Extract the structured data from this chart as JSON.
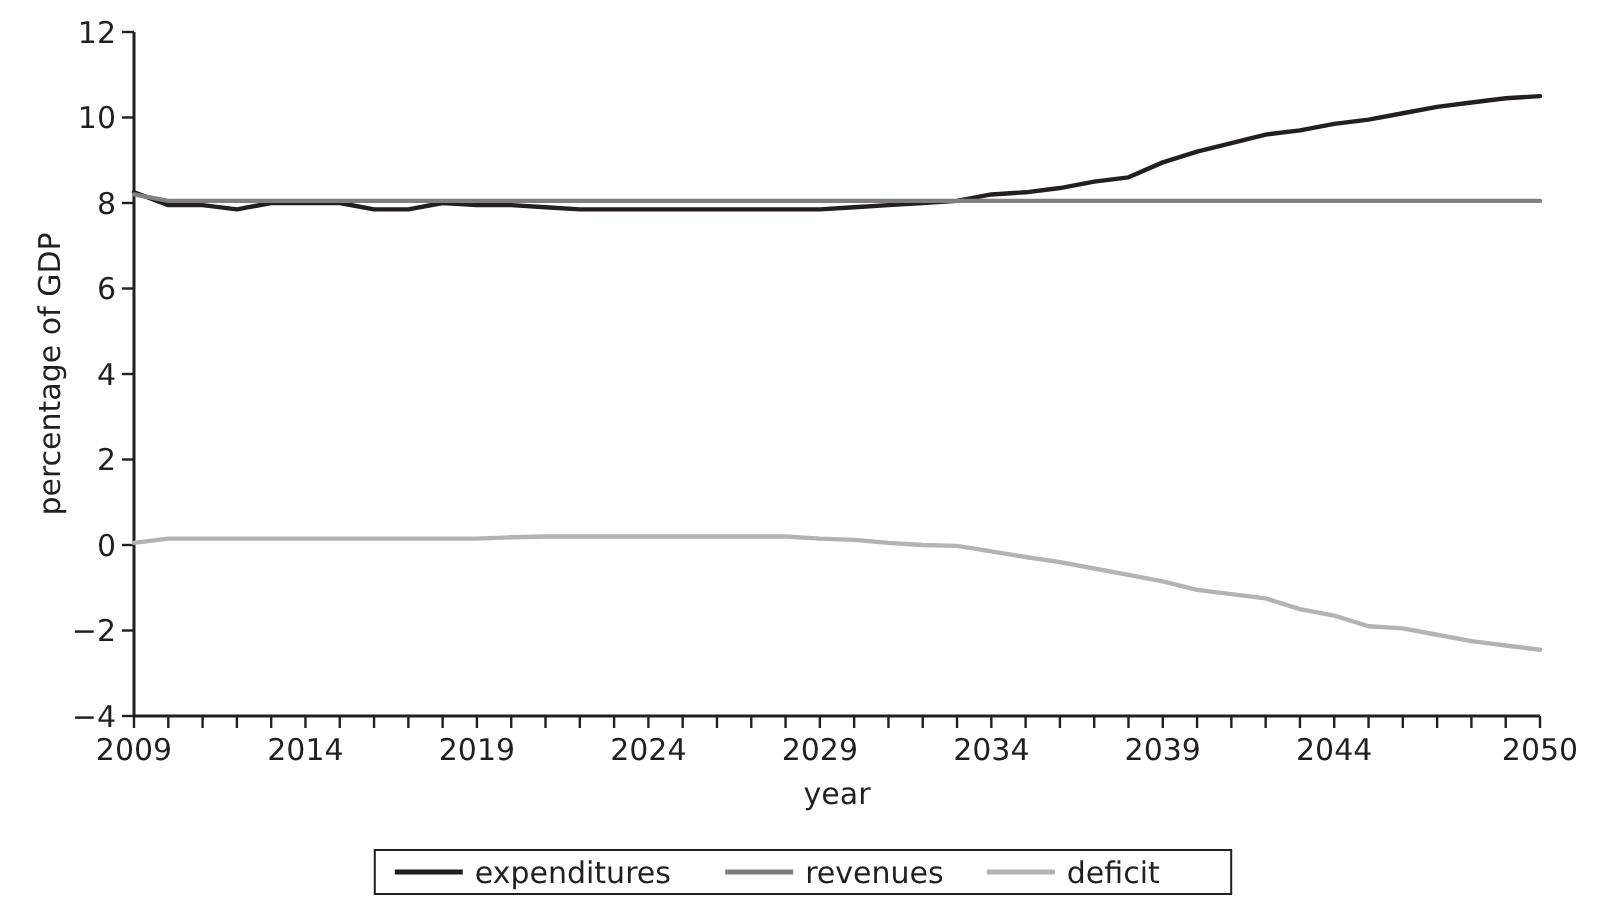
{
  "chart_data": {
    "type": "line",
    "xlabel": "year",
    "ylabel": "percentage of GDP",
    "x": [
      2009,
      2010,
      2011,
      2012,
      2013,
      2014,
      2015,
      2016,
      2017,
      2018,
      2019,
      2020,
      2021,
      2022,
      2023,
      2024,
      2025,
      2026,
      2027,
      2028,
      2029,
      2030,
      2031,
      2032,
      2033,
      2034,
      2035,
      2036,
      2037,
      2038,
      2039,
      2040,
      2041,
      2042,
      2043,
      2044,
      2045,
      2046,
      2047,
      2048,
      2049,
      2050
    ],
    "series": [
      {
        "name": "expenditures",
        "color": "#231f20",
        "values": [
          8.25,
          7.95,
          7.95,
          7.85,
          8.0,
          8.0,
          8.0,
          7.85,
          7.85,
          8.0,
          7.95,
          7.95,
          7.9,
          7.85,
          7.85,
          7.85,
          7.85,
          7.85,
          7.85,
          7.85,
          7.85,
          7.9,
          7.95,
          8.0,
          8.05,
          8.2,
          8.25,
          8.35,
          8.5,
          8.6,
          8.95,
          9.2,
          9.4,
          9.6,
          9.7,
          9.85,
          9.95,
          10.1,
          10.25,
          10.35,
          10.45,
          10.5
        ]
      },
      {
        "name": "revenues",
        "color": "#808080",
        "values": [
          8.2,
          8.05,
          8.05,
          8.05,
          8.05,
          8.05,
          8.05,
          8.05,
          8.05,
          8.05,
          8.05,
          8.05,
          8.05,
          8.05,
          8.05,
          8.05,
          8.05,
          8.05,
          8.05,
          8.05,
          8.05,
          8.05,
          8.05,
          8.05,
          8.05,
          8.05,
          8.05,
          8.05,
          8.05,
          8.05,
          8.05,
          8.05,
          8.05,
          8.05,
          8.05,
          8.05,
          8.05,
          8.05,
          8.05,
          8.05,
          8.05,
          8.05
        ]
      },
      {
        "name": "deficit",
        "color": "#b3b3b3",
        "values": [
          0.05,
          0.15,
          0.15,
          0.15,
          0.15,
          0.15,
          0.15,
          0.15,
          0.15,
          0.15,
          0.15,
          0.18,
          0.2,
          0.2,
          0.2,
          0.2,
          0.2,
          0.2,
          0.2,
          0.2,
          0.15,
          0.12,
          0.05,
          0.0,
          -0.02,
          -0.15,
          -0.28,
          -0.4,
          -0.55,
          -0.7,
          -0.85,
          -1.05,
          -1.15,
          -1.25,
          -1.5,
          -1.65,
          -1.9,
          -1.95,
          -2.1,
          -2.25,
          -2.35,
          -2.45
        ]
      }
    ],
    "xlim": [
      2009,
      2050
    ],
    "xticks": [
      2009,
      {
        "value": 2010,
        "label": null
      },
      {
        "value": 2011,
        "label": null
      },
      {
        "value": 2012,
        "label": null
      },
      {
        "value": 2013,
        "label": null
      },
      2014,
      {
        "value": 2015,
        "label": null
      },
      {
        "value": 2016,
        "label": null
      },
      {
        "value": 2017,
        "label": null
      },
      {
        "value": 2018,
        "label": null
      },
      2019,
      {
        "value": 2020,
        "label": null
      },
      {
        "value": 2021,
        "label": null
      },
      {
        "value": 2022,
        "label": null
      },
      {
        "value": 2023,
        "label": null
      },
      2024,
      {
        "value": 2025,
        "label": null
      },
      {
        "value": 2026,
        "label": null
      },
      {
        "value": 2027,
        "label": null
      },
      {
        "value": 2028,
        "label": null
      },
      2029,
      {
        "value": 2030,
        "label": null
      },
      {
        "value": 2031,
        "label": null
      },
      {
        "value": 2032,
        "label": null
      },
      {
        "value": 2033,
        "label": null
      },
      2034,
      {
        "value": 2035,
        "label": null
      },
      {
        "value": 2036,
        "label": null
      },
      {
        "value": 2037,
        "label": null
      },
      {
        "value": 2038,
        "label": null
      },
      2039,
      {
        "value": 2040,
        "label": null
      },
      {
        "value": 2041,
        "label": null
      },
      {
        "value": 2042,
        "label": null
      },
      {
        "value": 2043,
        "label": null
      },
      2044,
      {
        "value": 2045,
        "label": null
      },
      {
        "value": 2046,
        "label": null
      },
      {
        "value": 2047,
        "label": null
      },
      {
        "value": 2048,
        "label": null
      },
      {
        "value": 2049,
        "label": null
      },
      2050
    ],
    "ylim": [
      -4,
      12
    ],
    "yticks": [
      -4,
      -2,
      0,
      2,
      4,
      6,
      8,
      10,
      12
    ],
    "legend": "bottom",
    "grid": false,
    "marker": "none",
    "line_style": "solid"
  }
}
